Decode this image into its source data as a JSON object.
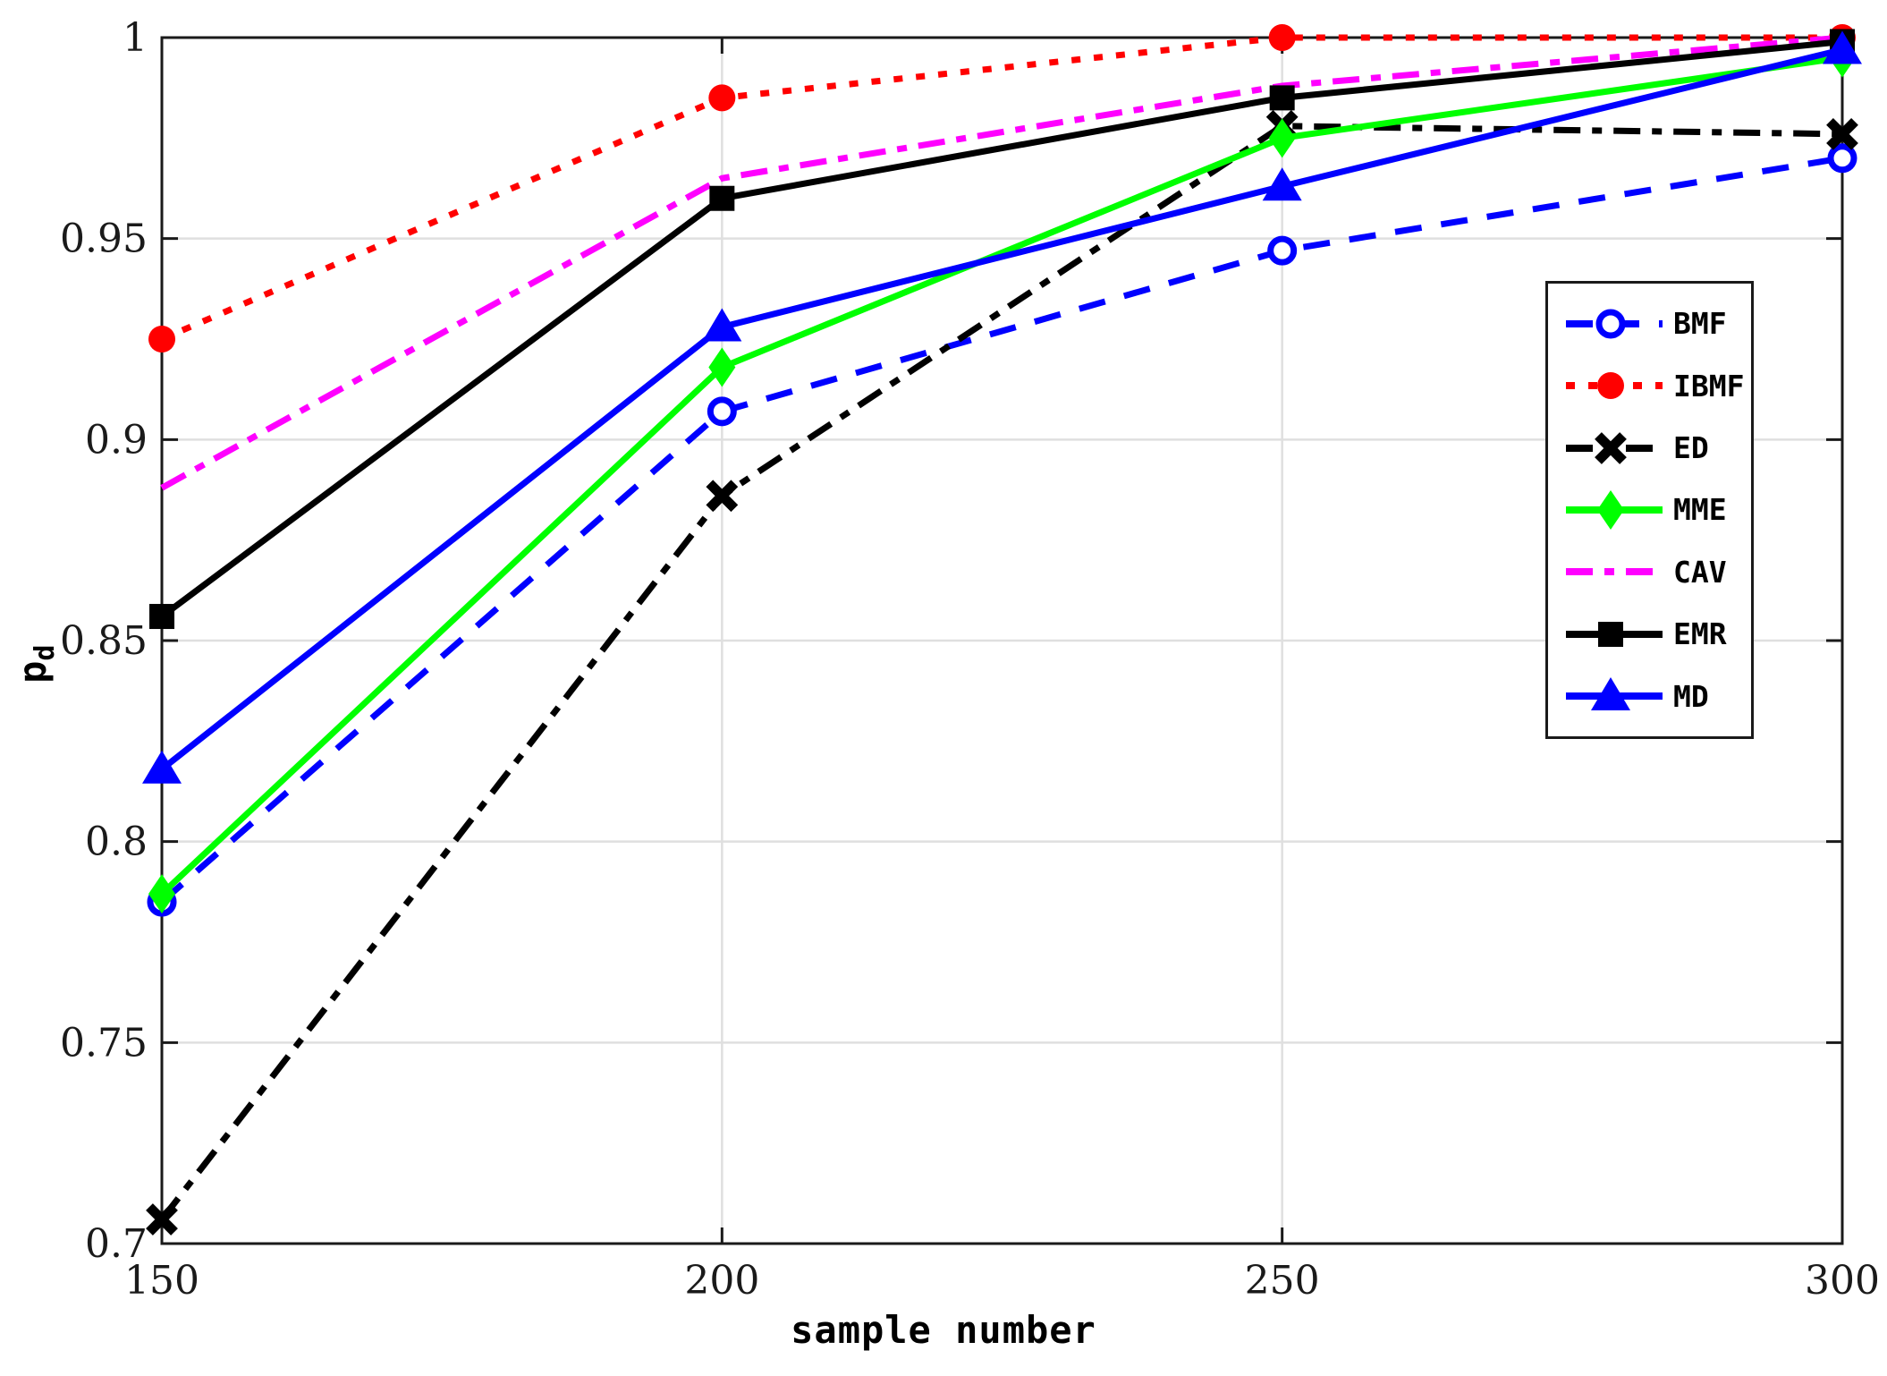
{
  "figure": {
    "background": "#ffffff",
    "ylabel_base": "p",
    "ylabel_sub": "d"
  },
  "colors": {
    "axis": "#1a1a1a",
    "grid": "#dfdfdf",
    "blue": "#0000ff",
    "red": "#ff0000",
    "black": "#000000",
    "green": "#00ff00",
    "magenta": "#ff00ff"
  },
  "chart_data": {
    "type": "line",
    "title": "",
    "xlabel": "sample number",
    "ylabel": "p_d",
    "x": [
      150,
      200,
      250,
      300
    ],
    "xlim": [
      150,
      300
    ],
    "ylim": [
      0.7,
      1.0
    ],
    "x_tick_labels": [
      "150",
      "200",
      "250",
      "300"
    ],
    "y_tick_values": [
      0.7,
      0.75,
      0.8,
      0.85,
      0.9,
      0.95,
      1
    ],
    "y_tick_labels": [
      "0.7",
      "0.75",
      "0.8",
      "0.85",
      "0.9",
      "0.95",
      "1"
    ],
    "grid": true,
    "legend_position": "right-inside",
    "series": [
      {
        "name": "BMF",
        "color": "#0000ff",
        "line_style": "dashed",
        "marker": "circle-open",
        "values": [
          0.785,
          0.907,
          0.947,
          0.97
        ]
      },
      {
        "name": "IBMF",
        "color": "#ff0000",
        "line_style": "dotted",
        "marker": "circle-filled",
        "values": [
          0.925,
          0.985,
          1.0,
          1.0
        ]
      },
      {
        "name": "ED",
        "color": "#000000",
        "line_style": "dashdot",
        "marker": "x",
        "values": [
          0.706,
          0.886,
          0.978,
          0.976
        ]
      },
      {
        "name": "MME",
        "color": "#00ff00",
        "line_style": "solid",
        "marker": "diamond",
        "values": [
          0.787,
          0.918,
          0.975,
          0.995
        ]
      },
      {
        "name": "CAV",
        "color": "#ff00ff",
        "line_style": "dashdot",
        "marker": "none",
        "values": [
          0.888,
          0.965,
          0.988,
          1.0
        ]
      },
      {
        "name": "EMR",
        "color": "#000000",
        "line_style": "solid",
        "marker": "square",
        "values": [
          0.856,
          0.96,
          0.985,
          0.999
        ]
      },
      {
        "name": "MD",
        "color": "#0000ff",
        "line_style": "solid",
        "marker": "triangle",
        "values": [
          0.818,
          0.928,
          0.963,
          0.997
        ]
      }
    ]
  }
}
